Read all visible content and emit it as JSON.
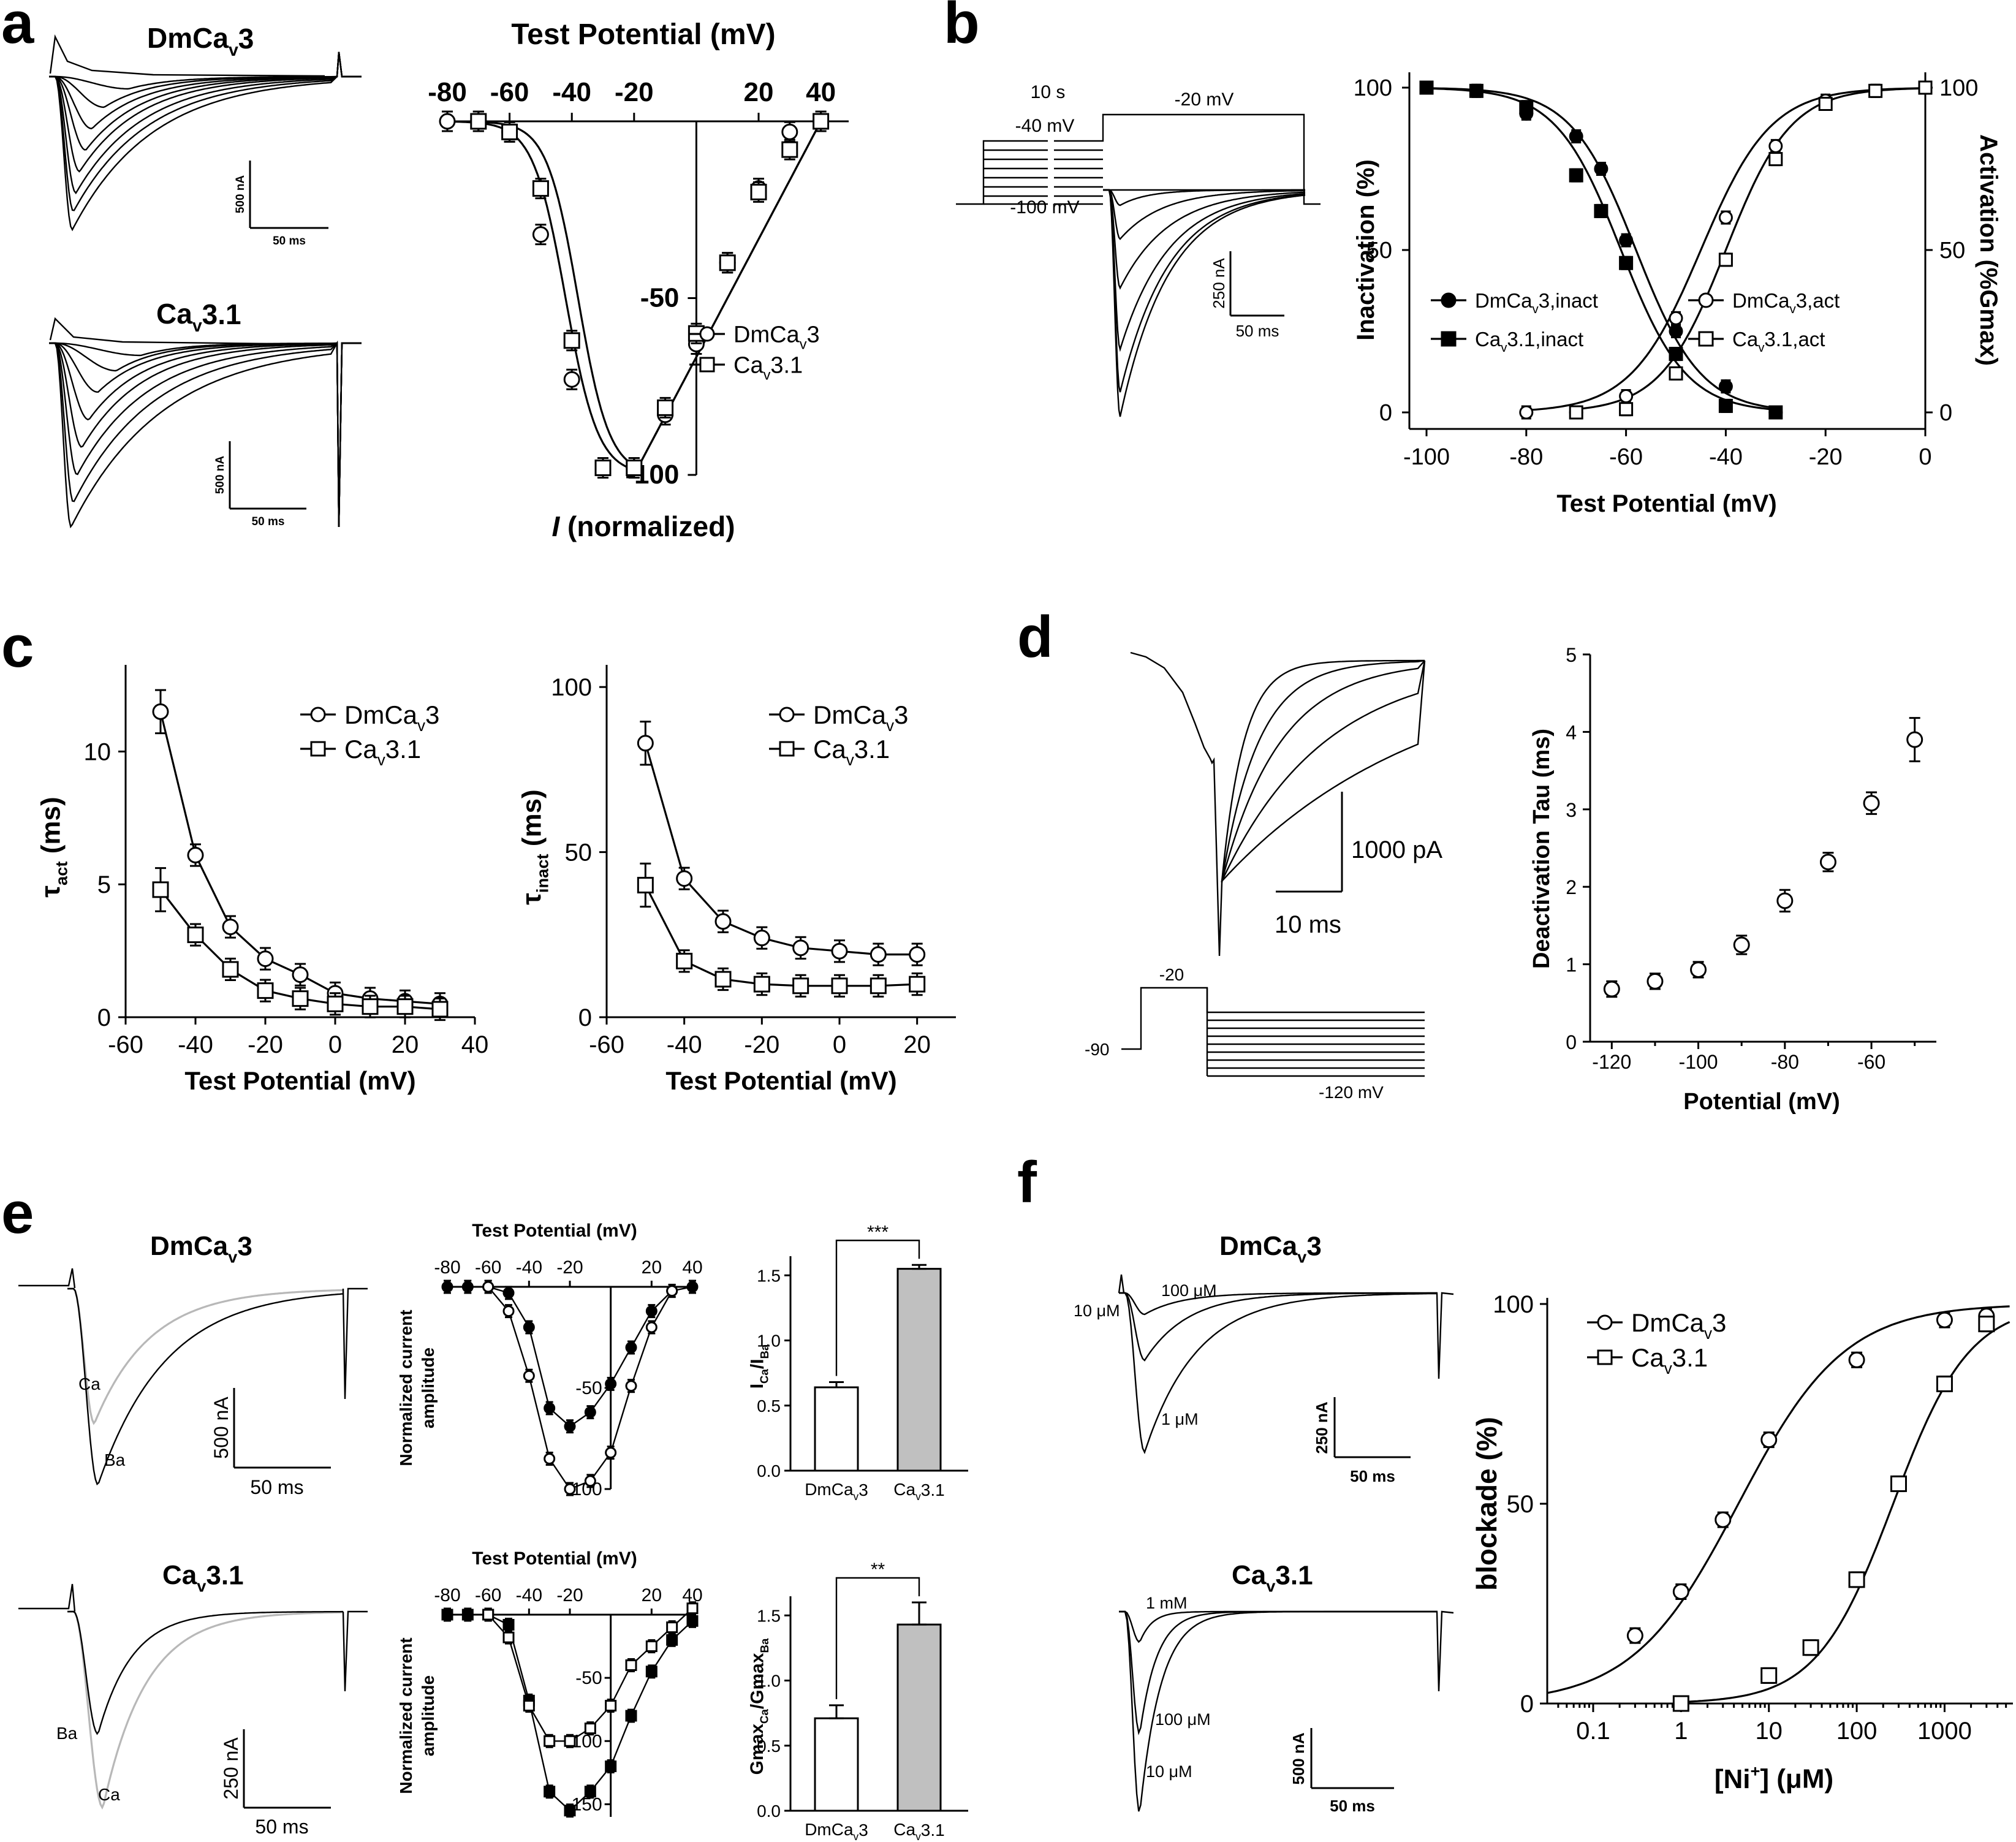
{
  "panels": {
    "a": {
      "letter": "a",
      "trace_titles": [
        "DmCa",
        "3",
        "Ca",
        "3.1"
      ],
      "scalebars": [
        {
          "v": "500 nA",
          "h": "50 ms"
        },
        {
          "v": "500 nA",
          "h": "50 ms"
        }
      ],
      "plot_title": "Test Potential (mV)",
      "y_title_italic": "I",
      "y_title_rest": " (normalized)",
      "x_ticks": [
        "-80",
        "-60",
        "-40",
        "-20",
        "20",
        "40"
      ],
      "y_ticks": [
        "-50",
        "-100"
      ],
      "legend": [
        {
          "label": "DmCa",
          "sub": "v",
          "tail": "3"
        },
        {
          "label": "Ca",
          "sub": "v",
          "tail": "3.1"
        }
      ]
    },
    "b": {
      "letter": "b",
      "protocol": {
        "t": "10 s",
        "hold": "-40 mV",
        "step": "-20 mV",
        "low": "-100 mV"
      },
      "scalebars": {
        "v": "250 nA",
        "h": "50 ms"
      },
      "x_title": "Test Potential (mV)",
      "y_title_left": "Inactivation (%)",
      "y_title_right": "Activation (%Gmax)",
      "x_ticks": [
        "-100",
        "-80",
        "-60",
        "-40",
        "-20",
        "0"
      ],
      "y_ticks": [
        "0",
        "50",
        "100"
      ],
      "legend": [
        {
          "label": "DmCa",
          "sub": "v",
          "tail": "3,inact"
        },
        {
          "label": "Ca",
          "sub": "v",
          "tail": "3.1,inact"
        },
        {
          "label": "DmCa",
          "sub": "v",
          "tail": "3,act"
        },
        {
          "label": "Ca",
          "sub": "v",
          "tail": "3.1,act"
        }
      ]
    },
    "c": {
      "letter": "c",
      "x_title": "Test Potential (mV)",
      "y_title_left": "τ",
      "y_title_left_sub": "act",
      "y_title_left_tail": " (ms)",
      "y_title_right": "τ",
      "y_title_right_sub": "inact",
      "y_title_right_tail": " (ms)",
      "x_ticks": [
        "-60",
        "-40",
        "-20",
        "0",
        "20",
        "40"
      ],
      "y_ticks_left": [
        "0",
        "5",
        "10"
      ],
      "y_ticks_right": [
        "0",
        "50",
        "100"
      ],
      "legend": [
        {
          "label": "DmCa",
          "sub": "v",
          "tail": "3"
        },
        {
          "label": "Ca",
          "sub": "v",
          "tail": "3.1"
        }
      ]
    },
    "d": {
      "letter": "d",
      "scalebars": {
        "v": "1000 pA",
        "h": "10 ms"
      },
      "protocol": {
        "step": "-20",
        "hold": "-90",
        "low": "-120 mV"
      },
      "x_title": "Potential (mV)",
      "y_title": "Deactivation Tau (ms)",
      "x_ticks": [
        "-120",
        "-100",
        "-80",
        "-60"
      ],
      "y_ticks": [
        "0",
        "1",
        "2",
        "3",
        "4",
        "5"
      ]
    },
    "e": {
      "letter": "e",
      "trace_titles": [
        "DmCa",
        "3",
        "Ca",
        "3.1"
      ],
      "trace_labels": [
        "Ca",
        "Ba",
        "Ba",
        "Ca"
      ],
      "scalebars": [
        {
          "v": "500 nA",
          "h": "50 ms"
        },
        {
          "v": "250 nA",
          "h": "50 ms"
        }
      ],
      "iv_title": "Test Potential (mV)",
      "iv_ylabel": [
        "Normalized current",
        "amplitude"
      ],
      "iv_x_ticks": [
        "-80",
        "-60",
        "-40",
        "-20",
        "20",
        "40"
      ],
      "iv_y_ticks_top": [
        "-50",
        "-100"
      ],
      "iv_y_ticks_bottom": [
        "-50",
        "-100",
        "-150"
      ],
      "bar_top_ylabel": [
        "I",
        "Ca",
        "/I",
        "Ba"
      ],
      "bar_bottom_ylabel": [
        "Gmax",
        "Ca",
        "/Gmax",
        "Ba"
      ],
      "bar_y_ticks": [
        "0.0",
        "0.5",
        "1.0",
        "1.5"
      ],
      "bar_categories": [
        {
          "label": "DmCa",
          "sub": "v",
          "tail": "3"
        },
        {
          "label": "Ca",
          "sub": "v",
          "tail": "3.1"
        }
      ],
      "sig_top": "***",
      "sig_bottom": "**"
    },
    "f": {
      "letter": "f",
      "trace_titles": [
        "DmCa",
        "3",
        "Ca",
        "3.1"
      ],
      "conc_labels_top": [
        "100 μM",
        "10 μM",
        "1 μM"
      ],
      "conc_labels_bottom": [
        "1 mM",
        "100 μM",
        "10 μM"
      ],
      "scalebars": [
        {
          "v": "250 nA",
          "h": "50 ms"
        },
        {
          "v": "500 nA",
          "h": "50 ms"
        }
      ],
      "x_title": "[Ni",
      "x_title_sup": "+",
      "x_title_tail": "] (μM)",
      "y_title": "blockade (%)",
      "x_ticks": [
        "0.1",
        "1",
        "10",
        "100",
        "1000"
      ],
      "y_ticks": [
        "0",
        "50",
        "100"
      ],
      "legend": [
        {
          "label": "DmCa",
          "sub": "v",
          "tail": "3"
        },
        {
          "label": "Ca",
          "sub": "v",
          "tail": "3.1"
        }
      ]
    }
  },
  "chart_data": [
    {
      "type": "line",
      "panel": "a",
      "title": "Test Potential (mV)",
      "xlabel": "Test Potential (mV)",
      "ylabel": "I (normalized)",
      "xlim": [
        -80,
        40
      ],
      "ylim": [
        -100,
        0
      ],
      "series": [
        {
          "name": "DmCav3",
          "marker": "circle-open",
          "x": [
            -80,
            -70,
            -60,
            -50,
            -40,
            -30,
            -20,
            -10,
            0,
            10,
            20,
            30,
            40
          ],
          "y": [
            0,
            0,
            -3,
            -32,
            -73,
            -98,
            -98,
            -83,
            -63,
            -40,
            -19,
            -3,
            0
          ]
        },
        {
          "name": "Cav3.1",
          "marker": "square-open",
          "x": [
            -70,
            -60,
            -50,
            -40,
            -30,
            -20,
            -10,
            0,
            10,
            20,
            30,
            40
          ],
          "y": [
            0,
            -3,
            -19,
            -62,
            -98,
            -98,
            -81,
            -60,
            -40,
            -20,
            -8,
            0
          ]
        }
      ]
    },
    {
      "type": "line",
      "panel": "b",
      "xlabel": "Test Potential (mV)",
      "ylabel": "Inactivation (%)",
      "y2label": "Activation (%Gmax)",
      "xlim": [
        -100,
        0
      ],
      "ylim": [
        0,
        100
      ],
      "series": [
        {
          "name": "DmCav3,inact",
          "marker": "circle-filled",
          "x": [
            -100,
            -90,
            -80,
            -70,
            -65,
            -60,
            -50,
            -40,
            -30
          ],
          "y": [
            100,
            99,
            92,
            85,
            75,
            53,
            25,
            8,
            0
          ]
        },
        {
          "name": "Cav3.1,inact",
          "marker": "square-filled",
          "x": [
            -100,
            -90,
            -80,
            -70,
            -65,
            -60,
            -50,
            -40,
            -30
          ],
          "y": [
            100,
            99,
            94,
            73,
            62,
            46,
            18,
            2,
            0
          ]
        },
        {
          "name": "DmCav3,act",
          "marker": "circle-open",
          "x": [
            -80,
            -70,
            -60,
            -50,
            -40,
            -30,
            -20,
            -10,
            0
          ],
          "y": [
            0,
            0,
            5,
            29,
            60,
            82,
            96,
            99,
            100
          ]
        },
        {
          "name": "Cav3.1,act",
          "marker": "square-open",
          "x": [
            -70,
            -60,
            -50,
            -40,
            -30,
            -20,
            -10,
            0
          ],
          "y": [
            0,
            1,
            12,
            47,
            78,
            95,
            99,
            100
          ]
        }
      ]
    },
    {
      "type": "line",
      "panel": "c-act",
      "xlabel": "Test Potential (mV)",
      "ylabel": "τact (ms)",
      "xlim": [
        -60,
        40
      ],
      "ylim": [
        0,
        12.5
      ],
      "series": [
        {
          "name": "DmCav3",
          "marker": "circle-open",
          "x": [
            -50,
            -40,
            -30,
            -20,
            -10,
            0,
            10,
            20,
            30
          ],
          "y": [
            11.5,
            6.1,
            3.4,
            2.2,
            1.6,
            0.9,
            0.7,
            0.6,
            0.5
          ]
        },
        {
          "name": "Cav3.1",
          "marker": "square-open",
          "x": [
            -50,
            -40,
            -30,
            -20,
            -10,
            0,
            10,
            20,
            30
          ],
          "y": [
            4.8,
            3.1,
            1.8,
            1.0,
            0.7,
            0.5,
            0.4,
            0.4,
            0.3
          ]
        }
      ]
    },
    {
      "type": "line",
      "panel": "c-inact",
      "xlabel": "Test Potential (mV)",
      "ylabel": "τinact (ms)",
      "xlim": [
        -60,
        30
      ],
      "ylim": [
        0,
        100
      ],
      "series": [
        {
          "name": "DmCav3",
          "marker": "circle-open",
          "x": [
            -50,
            -40,
            -30,
            -20,
            -10,
            0,
            10,
            20
          ],
          "y": [
            83,
            42,
            29,
            24,
            21,
            20,
            19,
            19
          ]
        },
        {
          "name": "Cav3.1",
          "marker": "square-open",
          "x": [
            -50,
            -40,
            -30,
            -20,
            -10,
            0,
            10,
            20
          ],
          "y": [
            40,
            17,
            11.5,
            10,
            9.5,
            9.5,
            9.5,
            10
          ]
        }
      ]
    },
    {
      "type": "scatter",
      "panel": "d",
      "xlabel": "Potential (mV)",
      "ylabel": "Deactivation Tau (ms)",
      "xlim": [
        -125,
        -45
      ],
      "ylim": [
        0,
        5
      ],
      "series": [
        {
          "marker": "circle-open",
          "x": [
            -120,
            -110,
            -100,
            -90,
            -80,
            -70,
            -60,
            -50
          ],
          "y": [
            0.68,
            0.78,
            0.93,
            1.25,
            1.82,
            2.32,
            3.08,
            3.9
          ]
        }
      ]
    },
    {
      "type": "line",
      "panel": "e-iv-top",
      "title": "Test Potential (mV)",
      "ylabel": "Normalized current amplitude",
      "xlim": [
        -80,
        40
      ],
      "ylim": [
        -100,
        0
      ],
      "series": [
        {
          "marker": "circle-filled",
          "x": [
            -80,
            -70,
            -60,
            -50,
            -40,
            -30,
            -20,
            -10,
            0,
            10,
            20,
            30,
            40
          ],
          "y": [
            0,
            0,
            0,
            -3,
            -20,
            -60,
            -69,
            -62,
            -48,
            -30,
            -12,
            -2,
            0
          ]
        },
        {
          "marker": "circle-open",
          "x": [
            -60,
            -50,
            -40,
            -30,
            -20,
            -10,
            0,
            10,
            20,
            30
          ],
          "y": [
            0,
            -12,
            -44,
            -85,
            -100,
            -96,
            -82,
            -49,
            -20,
            -2
          ]
        }
      ]
    },
    {
      "type": "line",
      "panel": "e-iv-bottom",
      "title": "Test Potential (mV)",
      "ylabel": "Normalized current amplitude",
      "xlim": [
        -80,
        40
      ],
      "ylim": [
        -160,
        0
      ],
      "series": [
        {
          "marker": "square-filled",
          "x": [
            -80,
            -70,
            -60,
            -50,
            -40,
            -30,
            -20,
            -10,
            0,
            10,
            20,
            30,
            40
          ],
          "y": [
            0,
            0,
            0,
            -8,
            -68,
            -140,
            -155,
            -140,
            -120,
            -80,
            -45,
            -20,
            -5
          ]
        },
        {
          "marker": "square-open",
          "x": [
            -60,
            -50,
            -40,
            -30,
            -20,
            -10,
            0,
            10,
            20,
            30,
            40
          ],
          "y": [
            0,
            -18,
            -72,
            -100,
            -100,
            -90,
            -72,
            -40,
            -25,
            -10,
            5
          ]
        }
      ]
    },
    {
      "type": "bar",
      "panel": "e-bar-top",
      "ylabel": "ICa/IBa",
      "ylim": [
        0,
        1.6
      ],
      "categories": [
        "DmCav3",
        "Cav3.1"
      ],
      "values": [
        0.64,
        1.55
      ],
      "errors": [
        0.04,
        0.03
      ],
      "fills": [
        "#ffffff",
        "#c0c0c0"
      ],
      "significance": "***"
    },
    {
      "type": "bar",
      "panel": "e-bar-bottom",
      "ylabel": "GmaxCa/GmaxBa",
      "ylim": [
        0,
        1.6
      ],
      "categories": [
        "DmCav3",
        "Cav3.1"
      ],
      "values": [
        0.71,
        1.43
      ],
      "errors": [
        0.1,
        0.17
      ],
      "fills": [
        "#ffffff",
        "#c0c0c0"
      ],
      "significance": "**"
    },
    {
      "type": "line",
      "panel": "f",
      "xlabel": "[Ni+] (μM)",
      "ylabel": "blockade (%)",
      "xscale": "log",
      "xlim": [
        0.03,
        6000
      ],
      "ylim": [
        0,
        100
      ],
      "series": [
        {
          "name": "DmCav3",
          "marker": "circle-open",
          "x": [
            0.3,
            1,
            3,
            10,
            100,
            1000,
            3000
          ],
          "y": [
            17,
            28,
            46,
            66,
            86,
            96,
            97
          ]
        },
        {
          "name": "Cav3.1",
          "marker": "square-open",
          "x": [
            1,
            10,
            30,
            100,
            300,
            1000,
            3000
          ],
          "y": [
            0,
            7,
            14,
            31,
            55,
            80,
            95
          ]
        }
      ]
    }
  ]
}
